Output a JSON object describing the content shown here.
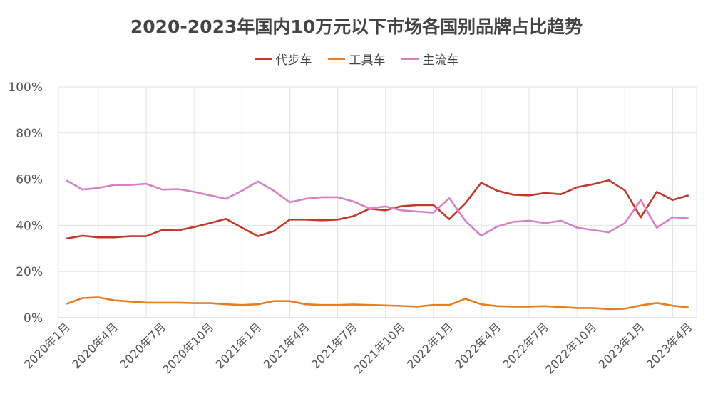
{
  "chart_data": {
    "type": "line",
    "title": "2020-2023年国内10万元以下市场各国别品牌占比趋势",
    "xlabel": "",
    "ylabel": "",
    "ylim": [
      0,
      100
    ],
    "y_ticks": [
      "0%",
      "20%",
      "40%",
      "60%",
      "80%",
      "100%"
    ],
    "y_tick_values": [
      0,
      20,
      40,
      60,
      80,
      100
    ],
    "grid": true,
    "legend_position": "top-center",
    "x": [
      "2020年1月",
      "2020年2月",
      "2020年3月",
      "2020年4月",
      "2020年5月",
      "2020年6月",
      "2020年7月",
      "2020年8月",
      "2020年9月",
      "2020年10月",
      "2020年11月",
      "2020年12月",
      "2021年1月",
      "2021年2月",
      "2021年3月",
      "2021年4月",
      "2021年5月",
      "2021年6月",
      "2021年7月",
      "2021年8月",
      "2021年9月",
      "2021年10月",
      "2021年11月",
      "2021年12月",
      "2022年1月",
      "2022年2月",
      "2022年3月",
      "2022年4月",
      "2022年5月",
      "2022年6月",
      "2022年7月",
      "2022年8月",
      "2022年9月",
      "2022年10月",
      "2022年11月",
      "2022年12月",
      "2023年1月",
      "2023年2月",
      "2023年3月",
      "2023年4月"
    ],
    "x_tick_labels": [
      "2020年1月",
      "2020年4月",
      "2020年7月",
      "2020年10月",
      "2021年1月",
      "2021年4月",
      "2021年7月",
      "2021年10月",
      "2022年1月",
      "2022年4月",
      "2022年7月",
      "2022年10月",
      "2023年1月",
      "2023年4月"
    ],
    "series": [
      {
        "name": "代步车",
        "color": "#c0392b",
        "values": [
          34.3,
          35.5,
          34.8,
          34.8,
          35.3,
          35.3,
          38,
          37.8,
          39.3,
          41,
          42.8,
          39,
          35.3,
          37.5,
          42.5,
          42.5,
          42.2,
          42.5,
          44,
          47.2,
          46.5,
          48.3,
          48.8,
          48.8,
          42.7,
          49.5,
          58.5,
          55,
          53.3,
          53,
          54,
          53.5,
          56.5,
          57.8,
          59.5,
          55.2,
          43.5,
          54.5,
          51,
          53
        ]
      },
      {
        "name": "工具车",
        "color": "#e67e22",
        "values": [
          6,
          8.5,
          8.8,
          7.5,
          7,
          6.5,
          6.5,
          6.5,
          6.3,
          6.3,
          5.8,
          5.5,
          5.8,
          7.2,
          7.2,
          5.8,
          5.5,
          5.5,
          5.7,
          5.5,
          5.3,
          5.1,
          4.8,
          5.5,
          5.5,
          8.2,
          5.8,
          5,
          4.8,
          4.8,
          5,
          4.6,
          4.2,
          4.2,
          3.7,
          3.9,
          5.3,
          6.4,
          5.2,
          4.4
        ]
      },
      {
        "name": "主流车",
        "color": "#d681c4",
        "values": [
          59.5,
          55.5,
          56.2,
          57.5,
          57.5,
          58,
          55.5,
          55.7,
          54.5,
          53,
          51.5,
          55,
          59,
          55,
          50,
          51.5,
          52.2,
          52.2,
          50.3,
          47.3,
          48.2,
          46.5,
          46,
          45.5,
          51.8,
          42,
          35.5,
          39.5,
          41.5,
          42,
          41,
          42,
          39,
          38,
          37,
          41,
          51,
          39,
          43.5,
          43
        ]
      }
    ]
  }
}
